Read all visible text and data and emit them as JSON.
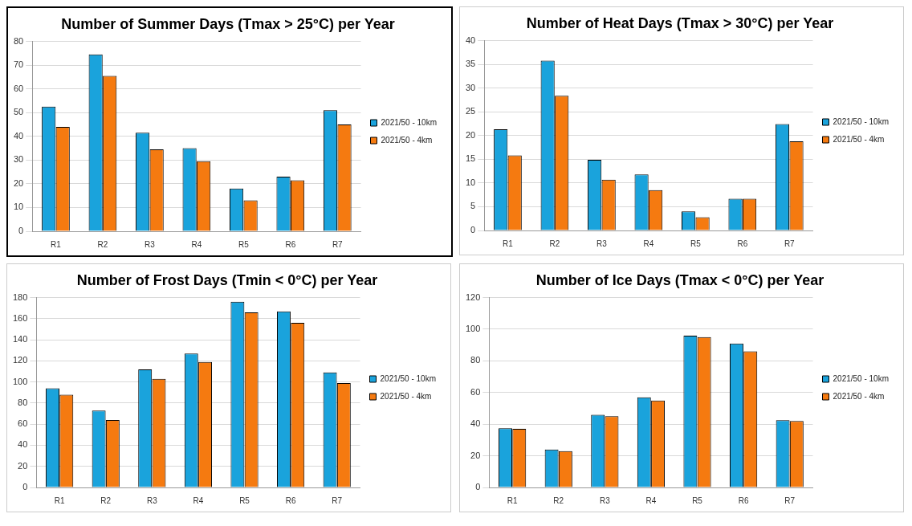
{
  "chart_data": [
    {
      "type": "bar",
      "title": "Number of Summer Days (Tmax > 25°C) per Year",
      "categories": [
        "R1",
        "R2",
        "R3",
        "R4",
        "R5",
        "R6",
        "R7"
      ],
      "series": [
        {
          "name": "2021/50 - 10km",
          "color": "#1aa3dc",
          "values": [
            52.5,
            74.5,
            41.5,
            35,
            18,
            23,
            51
          ]
        },
        {
          "name": "2021/50 - 4km",
          "color": "#f57a10",
          "values": [
            44,
            65.5,
            34.5,
            29.5,
            13,
            21.5,
            45
          ]
        }
      ],
      "ylim": [
        0,
        80
      ],
      "yticks": [
        0,
        10,
        20,
        30,
        40,
        50,
        60,
        70,
        80
      ],
      "grid": "y",
      "legend": "right"
    },
    {
      "type": "bar",
      "title": "Number of Heat Days (Tmax > 30°C) per Year",
      "categories": [
        "R1",
        "R2",
        "R3",
        "R4",
        "R5",
        "R6",
        "R7"
      ],
      "series": [
        {
          "name": "2021/50 - 10km",
          "color": "#1aa3dc",
          "values": [
            21.3,
            35.8,
            14.9,
            11.8,
            4,
            6.7,
            22.4
          ]
        },
        {
          "name": "2021/50 - 4km",
          "color": "#f57a10",
          "values": [
            15.8,
            28.4,
            10.7,
            8.5,
            2.8,
            6.7,
            18.8
          ]
        }
      ],
      "ylim": [
        0,
        40
      ],
      "yticks": [
        0,
        5,
        10,
        15,
        20,
        25,
        30,
        35,
        40
      ],
      "grid": "y",
      "legend": "right"
    },
    {
      "type": "bar",
      "title": "Number of Frost Days (Tmin < 0°C) per Year",
      "categories": [
        "R1",
        "R2",
        "R3",
        "R4",
        "R5",
        "R6",
        "R7"
      ],
      "series": [
        {
          "name": "2021/50 - 10km",
          "color": "#1aa3dc",
          "values": [
            94,
            73,
            112,
            127,
            176,
            167,
            109
          ]
        },
        {
          "name": "2021/50 - 4km",
          "color": "#f57a10",
          "values": [
            88,
            64,
            103,
            119,
            166,
            156,
            99
          ]
        }
      ],
      "ylim": [
        0,
        180
      ],
      "yticks": [
        0,
        20,
        40,
        60,
        80,
        100,
        120,
        140,
        160,
        180
      ],
      "grid": "y",
      "legend": "right"
    },
    {
      "type": "bar",
      "title": "Number of Ice Days (Tmax < 0°C) per Year",
      "categories": [
        "R1",
        "R2",
        "R3",
        "R4",
        "R5",
        "R6",
        "R7"
      ],
      "series": [
        {
          "name": "2021/50 - 10km",
          "color": "#1aa3dc",
          "values": [
            37.5,
            24,
            46,
            57,
            96,
            91,
            42.5
          ]
        },
        {
          "name": "2021/50 - 4km",
          "color": "#f57a10",
          "values": [
            37,
            23,
            45,
            55,
            95,
            86,
            42
          ]
        }
      ],
      "ylim": [
        0,
        120
      ],
      "yticks": [
        0,
        20,
        40,
        60,
        80,
        100,
        120
      ],
      "grid": "y",
      "legend": "right"
    }
  ]
}
